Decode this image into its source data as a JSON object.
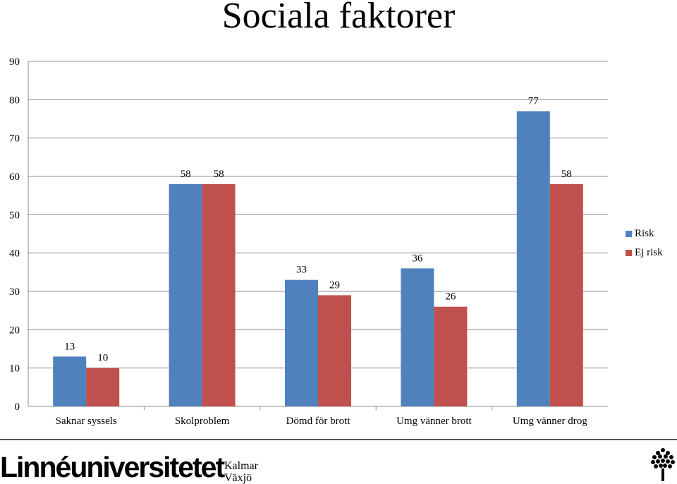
{
  "chart_data": {
    "type": "bar",
    "title": "Sociala faktorer",
    "categories": [
      "Saknar syssels",
      "Skolproblem",
      "Dömd för brott",
      "Umg vänner brott",
      "Umg vänner drog"
    ],
    "series": [
      {
        "name": "Risk",
        "values": [
          13,
          58,
          33,
          36,
          77
        ],
        "color": "#4f81bd"
      },
      {
        "name": "Ej risk",
        "values": [
          10,
          58,
          29,
          26,
          58
        ],
        "color": "#c0504d"
      }
    ],
    "ylim": [
      0,
      90
    ],
    "yticks": [
      0,
      10,
      20,
      30,
      40,
      50,
      60,
      70,
      80,
      90
    ],
    "grid": true,
    "legend_position": "right"
  },
  "footer": {
    "logo_text": "Linnéuniversitetet",
    "city_line_1": "Kalmar",
    "city_line_2": "Växjö",
    "icon": "tree-icon"
  }
}
